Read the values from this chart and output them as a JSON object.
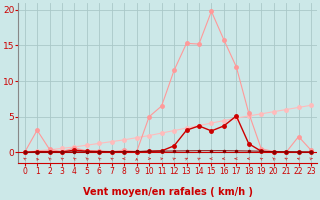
{
  "xlabel": "Vent moyen/en rafales ( km/h )",
  "bg_color": "#cce8e8",
  "grid_color": "#aac8c8",
  "x_ticks": [
    0,
    1,
    2,
    3,
    4,
    5,
    6,
    7,
    8,
    9,
    10,
    11,
    12,
    13,
    14,
    15,
    16,
    17,
    18,
    19,
    20,
    21,
    22,
    23
  ],
  "y_ticks": [
    0,
    5,
    10,
    15,
    20
  ],
  "ylim": [
    -1.5,
    21
  ],
  "xlim": [
    -0.5,
    23.5
  ],
  "line_rafales_x": [
    0,
    1,
    2,
    3,
    4,
    5,
    6,
    7,
    8,
    9,
    10,
    11,
    12,
    13,
    14,
    15,
    16,
    17,
    18,
    19,
    20,
    21,
    22,
    23
  ],
  "line_rafales_y": [
    0.0,
    3.1,
    0.4,
    0.1,
    0.6,
    0.2,
    0.2,
    0.1,
    0.3,
    0.1,
    5.0,
    6.5,
    11.5,
    15.3,
    15.2,
    19.8,
    15.8,
    12.0,
    5.5,
    0.5,
    0.1,
    0.0,
    2.2,
    0.3
  ],
  "line_rafales_color": "#ff9999",
  "line_moy_x": [
    0,
    1,
    2,
    3,
    4,
    5,
    6,
    7,
    8,
    9,
    10,
    11,
    12,
    13,
    14,
    15,
    16,
    17,
    18,
    19,
    20,
    21,
    22,
    23
  ],
  "line_moy_y": [
    0.0,
    0.1,
    0.1,
    0.05,
    0.3,
    0.15,
    0.1,
    0.05,
    0.05,
    0.05,
    0.15,
    0.2,
    0.9,
    3.1,
    3.7,
    3.0,
    3.7,
    5.1,
    1.2,
    0.15,
    0.0,
    0.0,
    0.0,
    0.0
  ],
  "line_moy_color": "#cc0000",
  "line_trend_x": [
    0,
    1,
    2,
    3,
    4,
    5,
    6,
    7,
    8,
    9,
    10,
    11,
    12,
    13,
    14,
    15,
    16,
    17,
    18,
    19,
    20,
    21,
    22,
    23
  ],
  "line_trend_y": [
    0.05,
    0.2,
    0.35,
    0.55,
    0.75,
    1.0,
    1.25,
    1.5,
    1.75,
    2.05,
    2.35,
    2.7,
    3.05,
    3.4,
    3.75,
    4.1,
    4.45,
    4.8,
    5.1,
    5.4,
    5.7,
    6.0,
    6.3,
    6.6
  ],
  "line_trend_color": "#ffbbbb",
  "line_base_x": [
    0,
    1,
    2,
    3,
    4,
    5,
    6,
    7,
    8,
    9,
    10,
    11,
    12,
    13,
    14,
    15,
    16,
    17,
    18,
    19,
    20,
    21,
    22,
    23
  ],
  "line_base_y": [
    0.0,
    0.02,
    0.03,
    0.04,
    0.05,
    0.06,
    0.07,
    0.08,
    0.1,
    0.12,
    0.14,
    0.16,
    0.18,
    0.2,
    0.22,
    0.22,
    0.22,
    0.2,
    0.18,
    0.15,
    0.1,
    0.08,
    0.06,
    0.04
  ],
  "line_base_color": "#880000",
  "arrow_dirs": [
    225,
    200,
    210,
    220,
    215,
    210,
    215,
    225,
    270,
    180,
    90,
    110,
    120,
    130,
    125,
    270,
    280,
    270,
    260,
    225,
    210,
    230,
    240,
    115
  ],
  "arrow_color": "#cc4444",
  "axis_color": "#cc0000",
  "tick_color": "#cc0000",
  "marker_size": 2.5,
  "xlabel_fontsize": 7,
  "tick_fontsize": 5.5
}
